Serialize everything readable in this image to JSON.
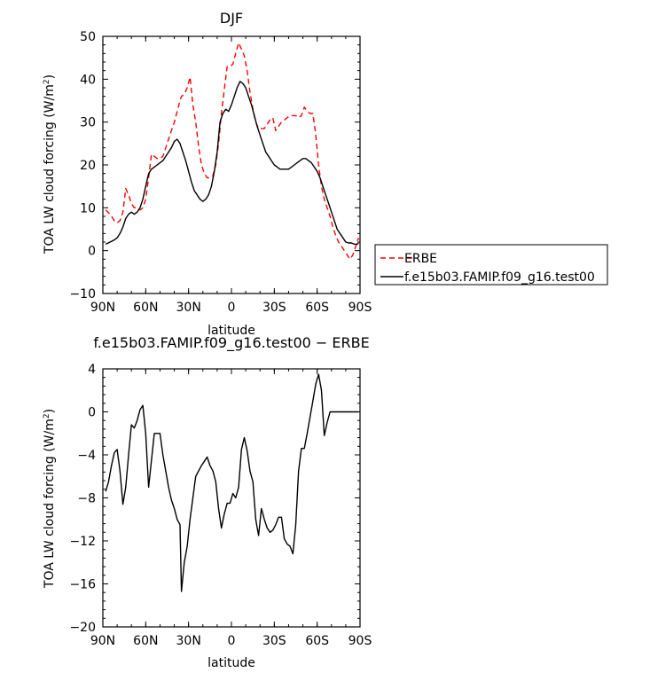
{
  "chart_data": [
    {
      "type": "line",
      "title": "DJF",
      "xlabel": "latitude",
      "ylabel": "TOA LW cloud forcing (W/m",
      "ylabel_sup": "2",
      "ylabel_close": ")",
      "xlim": [
        90,
        -90
      ],
      "ylim": [
        -10,
        50
      ],
      "x_ticks": [
        {
          "v": 90,
          "label": "90N"
        },
        {
          "v": 60,
          "label": "60N"
        },
        {
          "v": 30,
          "label": "30N"
        },
        {
          "v": 0,
          "label": "0"
        },
        {
          "v": -30,
          "label": "30S"
        },
        {
          "v": -60,
          "label": "60S"
        },
        {
          "v": -90,
          "label": "90S"
        }
      ],
      "y_ticks": [
        -10,
        0,
        10,
        20,
        30,
        40,
        50
      ],
      "legend": {
        "placement": "right"
      },
      "series": [
        {
          "name": "ERBE",
          "color": "#ff0000",
          "dash": "dashed",
          "x": [
            88,
            85,
            82,
            80,
            78,
            76,
            74,
            72,
            70,
            68,
            66,
            64,
            62,
            60,
            58,
            56,
            54,
            52,
            50,
            48,
            46,
            44,
            42,
            40,
            38,
            36,
            35,
            33,
            31,
            29,
            27,
            25,
            23,
            21,
            19,
            17,
            15,
            13,
            11,
            9,
            7,
            5,
            3,
            1,
            -1,
            -3,
            -5,
            -7,
            -9,
            -11,
            -13,
            -15,
            -17,
            -19,
            -21,
            -23,
            -25,
            -27,
            -29,
            -31,
            -33,
            -35,
            -37,
            -39,
            -41,
            -43,
            -45,
            -47,
            -49,
            -51,
            -53,
            -55,
            -57,
            -59,
            -61,
            -63,
            -65,
            -67,
            -69,
            -71,
            -73,
            -75,
            -77,
            -79,
            -81,
            -83,
            -85,
            -87,
            -89
          ],
          "y": [
            9.5,
            8.5,
            7,
            6.5,
            7,
            9,
            14.5,
            13,
            11,
            10,
            10,
            9.5,
            10,
            12,
            17,
            22.5,
            22,
            21.5,
            21.5,
            22,
            24,
            26,
            28,
            30,
            32.5,
            35,
            36,
            36.5,
            38,
            40.5,
            34,
            30,
            24.5,
            20,
            18,
            17,
            17,
            17.5,
            20,
            25,
            32,
            37.5,
            43,
            43,
            43.5,
            46,
            48.5,
            47,
            45.5,
            42,
            37,
            33,
            30,
            28.5,
            28.5,
            28.5,
            29.5,
            30.5,
            31,
            28,
            29,
            30,
            30.5,
            31,
            31.5,
            31.5,
            31.5,
            31,
            31.5,
            33.5,
            32.5,
            32,
            32,
            27,
            20,
            15,
            12,
            10,
            8,
            5.5,
            3.5,
            2,
            1,
            0,
            -1,
            -2,
            -1,
            1,
            3
          ]
        },
        {
          "name": "f.e15b03.FAMIP.f09_g16.test00",
          "color": "#000000",
          "dash": "solid",
          "x": [
            88,
            85,
            82,
            80,
            78,
            76,
            74,
            72,
            70,
            68,
            66,
            64,
            62,
            60,
            58,
            56,
            54,
            52,
            50,
            48,
            46,
            44,
            42,
            40,
            38,
            36,
            34,
            32,
            30,
            28,
            26,
            24,
            22,
            20,
            18,
            16,
            14,
            12,
            10,
            8,
            6,
            4,
            2,
            0,
            -2,
            -4,
            -6,
            -8,
            -10,
            -12,
            -14,
            -16,
            -18,
            -20,
            -22,
            -24,
            -26,
            -28,
            -30,
            -32,
            -34,
            -36,
            -38,
            -40,
            -42,
            -44,
            -46,
            -48,
            -50,
            -52,
            -54,
            -56,
            -58,
            -60,
            -62,
            -64,
            -66,
            -68,
            -70,
            -72,
            -74,
            -76,
            -78,
            -80,
            -82,
            -84,
            -86,
            -88,
            -89
          ],
          "y": [
            1.5,
            2,
            2.5,
            3,
            4,
            5.5,
            7.5,
            8.5,
            9,
            8.5,
            9,
            10,
            12,
            15,
            18,
            19,
            19.5,
            20,
            20.5,
            21,
            22,
            23,
            24,
            25.5,
            26,
            25,
            23,
            21,
            18.5,
            16,
            14,
            13,
            12,
            11.5,
            12,
            13,
            15,
            18.5,
            23,
            30,
            32,
            33,
            32.5,
            34,
            36,
            38,
            39.5,
            39,
            38,
            36,
            34,
            31.5,
            29,
            27,
            25,
            23,
            22,
            21,
            20,
            19.5,
            19,
            19,
            19,
            19,
            19.5,
            20,
            20.5,
            21,
            21.5,
            21.5,
            21,
            20.5,
            19.5,
            18.5,
            17,
            15,
            13,
            11,
            9,
            7,
            5,
            4,
            3,
            2,
            1.8,
            1.8,
            1.5,
            1.5,
            1.8
          ]
        }
      ]
    },
    {
      "type": "line",
      "title": "f.e15b03.FAMIP.f09_g16.test00 − ERBE",
      "xlabel": "latitude",
      "ylabel": "TOA LW cloud forcing (W/m",
      "ylabel_sup": "2",
      "ylabel_close": ")",
      "xlim": [
        90,
        -90
      ],
      "ylim": [
        -20,
        4
      ],
      "x_ticks": [
        {
          "v": 90,
          "label": "90N"
        },
        {
          "v": 60,
          "label": "60N"
        },
        {
          "v": 30,
          "label": "30N"
        },
        {
          "v": 0,
          "label": "0"
        },
        {
          "v": -30,
          "label": "30S"
        },
        {
          "v": -60,
          "label": "60S"
        },
        {
          "v": -90,
          "label": "90S"
        }
      ],
      "y_ticks": [
        -20,
        -16,
        -12,
        -8,
        -4,
        0,
        4
      ],
      "series": [
        {
          "color": "#000000",
          "dash": "solid",
          "x": [
            88,
            86,
            84,
            82,
            80,
            78,
            76,
            74,
            72,
            70,
            68,
            66,
            64,
            62,
            60,
            58,
            56,
            54,
            52,
            50,
            48,
            46,
            44,
            42,
            40,
            38,
            36,
            35,
            33,
            31,
            29,
            27,
            25,
            23,
            21,
            19,
            17,
            15,
            13,
            11,
            9,
            7,
            5,
            3,
            1,
            -1,
            -3,
            -5,
            -7,
            -9,
            -11,
            -13,
            -15,
            -17,
            -19,
            -21,
            -23,
            -25,
            -27,
            -29,
            -31,
            -33,
            -35,
            -37,
            -39,
            -41,
            -43,
            -45,
            -47,
            -49,
            -51,
            -53,
            -55,
            -57,
            -59,
            -61,
            -63,
            -65,
            -67,
            -69,
            -71,
            -73,
            -75,
            -77,
            -79,
            -81,
            -83,
            -85,
            -87,
            -89
          ],
          "y": [
            -7.4,
            -6.5,
            -5,
            -3.8,
            -3.5,
            -5.5,
            -8.6,
            -7,
            -4,
            -1.2,
            -1.5,
            -0.8,
            0.2,
            0.6,
            -2,
            -7,
            -4.5,
            -2,
            -2,
            -2,
            -4,
            -5.5,
            -7,
            -8.2,
            -9,
            -10,
            -10.5,
            -16.7,
            -14,
            -12.5,
            -10,
            -8,
            -6,
            -5.5,
            -5,
            -4.6,
            -4.2,
            -5,
            -5.5,
            -6.5,
            -9,
            -10.8,
            -9.5,
            -8.5,
            -8.5,
            -7.6,
            -8,
            -7,
            -3.5,
            -2.4,
            -3.6,
            -5.5,
            -6.5,
            -10,
            -11.5,
            -9,
            -10,
            -10.8,
            -11.2,
            -11,
            -10.5,
            -9.8,
            -9.8,
            -11.8,
            -12.3,
            -12.5,
            -13.2,
            -10.5,
            -5.5,
            -3.4,
            -3.4,
            -2,
            -0.5,
            1,
            2.6,
            3.5,
            2,
            -2.2,
            -1,
            0,
            0,
            0,
            0,
            0,
            0,
            0,
            0,
            0,
            0,
            0
          ]
        }
      ]
    }
  ]
}
